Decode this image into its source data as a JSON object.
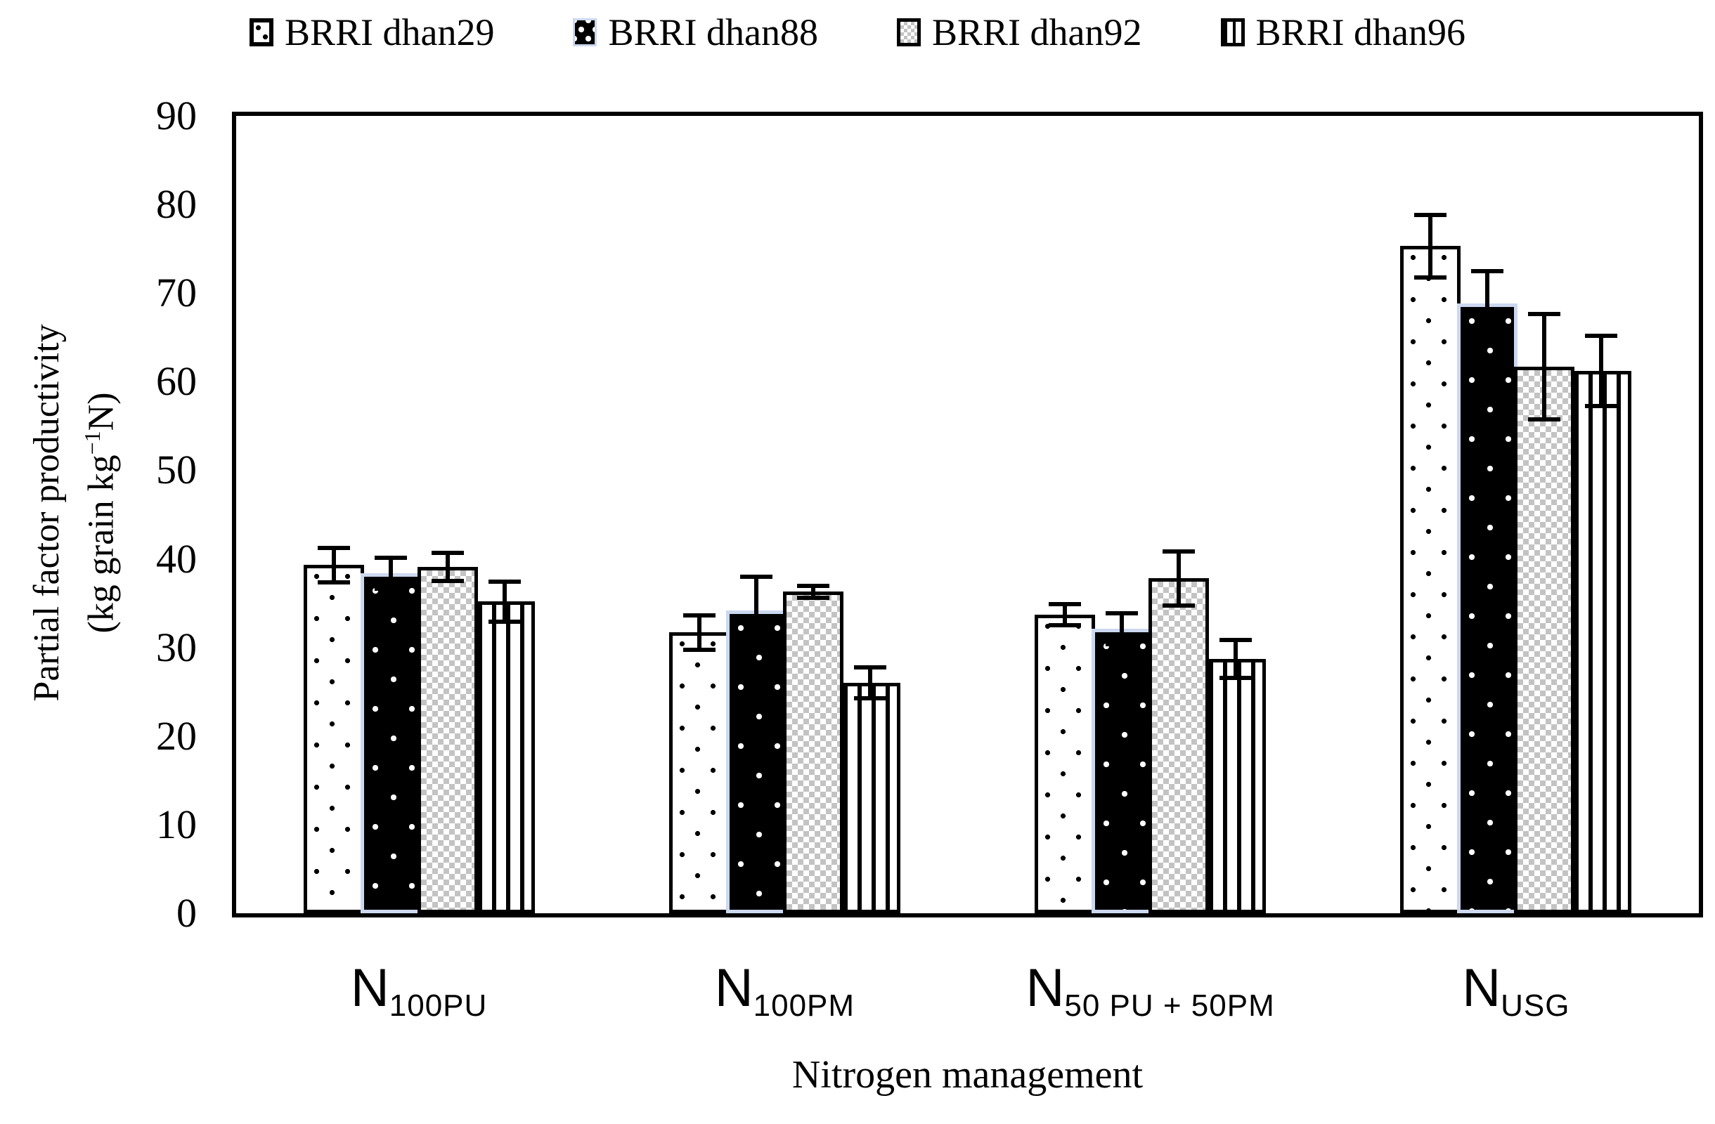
{
  "legend": {
    "items": [
      {
        "label": "BRRI dhan29",
        "pattern": "dots-on-white"
      },
      {
        "label": "BRRI dhan88",
        "pattern": "white-dots-on-black"
      },
      {
        "label": "BRRI dhan92",
        "pattern": "gray-checker"
      },
      {
        "label": "BRRI dhan96",
        "pattern": "vertical-stripes"
      }
    ]
  },
  "y_axis": {
    "title_line1": "Partial factor productivity",
    "title_line2_pre": "(kg grain kg",
    "title_line2_sup": "−1",
    "title_line2_post": "N)",
    "ticks": [
      0,
      10,
      20,
      30,
      40,
      50,
      60,
      70,
      80,
      90
    ]
  },
  "x_axis": {
    "title": "Nitrogen management",
    "categories": [
      {
        "base": "N",
        "sub": "100PU"
      },
      {
        "base": "N",
        "sub": "100PM"
      },
      {
        "base": "N",
        "sub": "50 PU + 50PM"
      },
      {
        "base": "N",
        "sub": "USG"
      }
    ]
  },
  "chart_data": {
    "type": "bar",
    "title": "",
    "categories": [
      "N100PU",
      "N100PM",
      "N50 PU + 50PM",
      "NUSG"
    ],
    "series": [
      {
        "name": "BRRI dhan29",
        "pattern": "dots-on-white",
        "values": [
          39.3,
          31.7,
          33.7,
          75.3
        ],
        "errors": [
          2.2,
          2.2,
          1.4,
          3.8
        ]
      },
      {
        "name": "BRRI dhan88",
        "pattern": "white-dots-on-black",
        "values": [
          38.4,
          34.2,
          32.1,
          68.8
        ],
        "errors": [
          2.0,
          4.0,
          2.0,
          3.9
        ]
      },
      {
        "name": "BRRI dhan92",
        "pattern": "gray-checker",
        "values": [
          39.1,
          36.3,
          37.8,
          61.7
        ],
        "errors": [
          1.8,
          0.9,
          3.3,
          6.2
        ]
      },
      {
        "name": "BRRI dhan96",
        "pattern": "vertical-stripes",
        "values": [
          35.2,
          26.0,
          28.7,
          61.2
        ],
        "errors": [
          2.5,
          2.0,
          2.4,
          4.2
        ]
      }
    ],
    "ylim": [
      0,
      90
    ],
    "ylabel": "Partial factor productivity (kg grain kg−1N)",
    "xlabel": "Nitrogen management",
    "grid": false,
    "legend_position": "top",
    "error_bars": true
  }
}
